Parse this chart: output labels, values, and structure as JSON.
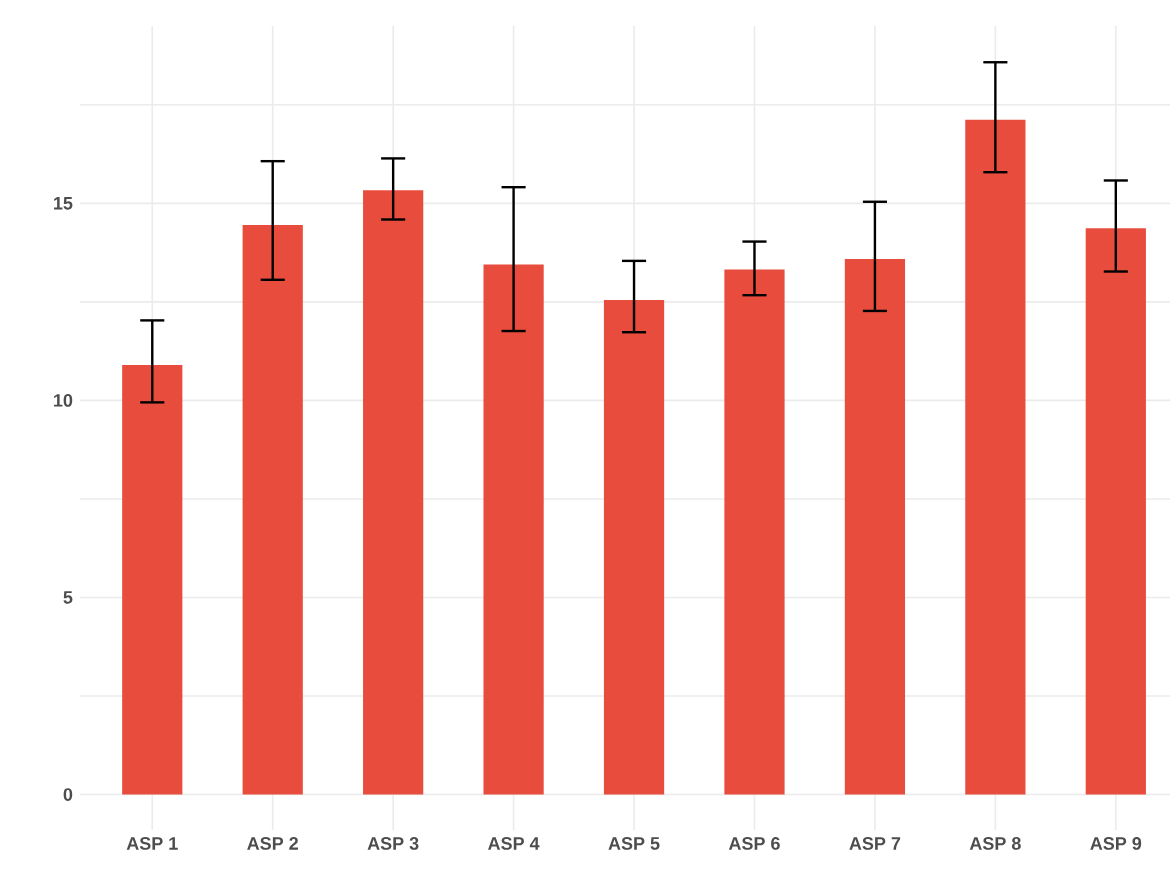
{
  "chart_data": {
    "type": "bar",
    "categories": [
      "ASP 1",
      "ASP 2",
      "ASP 3",
      "ASP 4",
      "ASP 5",
      "ASP 6",
      "ASP 7",
      "ASP 8",
      "ASP 9"
    ],
    "values": [
      10.9,
      14.45,
      15.33,
      13.45,
      12.55,
      13.32,
      13.59,
      17.12,
      14.37
    ],
    "errors": [
      [
        9.95,
        12.03
      ],
      [
        13.06,
        16.07
      ],
      [
        14.59,
        16.14
      ],
      [
        11.76,
        15.41
      ],
      [
        11.73,
        13.54
      ],
      [
        12.67,
        14.03
      ],
      [
        12.27,
        15.04
      ],
      [
        15.79,
        18.58
      ],
      [
        13.27,
        15.58
      ]
    ],
    "color": "#e84c3d",
    "ylim": [
      -0.9,
      19.5
    ],
    "yticks": [
      0,
      {
        "value": 2.5,
        "label": null
      },
      5,
      {
        "value": 7.5,
        "label": null
      },
      10,
      {
        "value": 12.5,
        "label": null
      },
      15,
      {
        "value": 17.5,
        "label": null
      }
    ],
    "grid": true
  }
}
